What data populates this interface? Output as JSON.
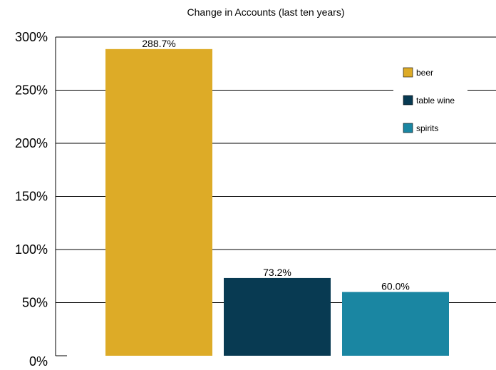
{
  "chart_data": {
    "type": "bar",
    "title": "Change in Accounts (last ten years)",
    "xlabel": "",
    "ylabel": "",
    "categories": [
      "beer",
      "table wine",
      "spirits"
    ],
    "values": [
      288.7,
      73.2,
      60.0
    ],
    "value_labels": [
      "288.7%",
      "73.2%",
      "60.0%"
    ],
    "colors": [
      "#DDAB27",
      "#083A52",
      "#1A86A2"
    ],
    "ylim": [
      0,
      300
    ],
    "yticks": [
      0,
      50,
      100,
      150,
      200,
      250,
      300
    ],
    "ytick_labels": [
      "0%",
      "50%",
      "100%",
      "150%",
      "200%",
      "250%",
      "300%"
    ],
    "grid": true,
    "legend": {
      "placement": "top-right",
      "entries": [
        {
          "label": "beer",
          "color": "#DDAB27"
        },
        {
          "label": "table wine",
          "color": "#083A52"
        },
        {
          "label": "spirits",
          "color": "#1A86A2"
        }
      ]
    }
  }
}
